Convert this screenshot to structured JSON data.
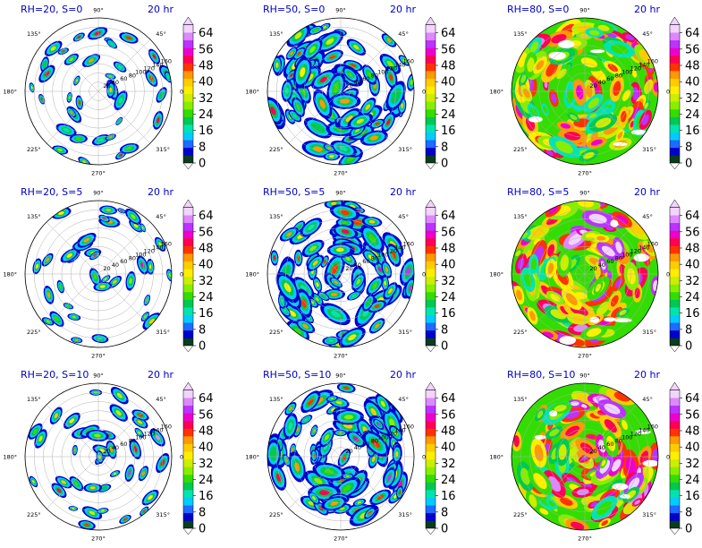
{
  "chart_data": {
    "type": "polar-field-grid",
    "time_label": "20 hr",
    "angle_tick_labels": [
      "0°",
      "45°",
      "90°",
      "135°",
      "180°",
      "225°",
      "270°",
      "315°"
    ],
    "radial_tick_labels": [
      "20",
      "40",
      "60",
      "80",
      "100",
      "120",
      "140",
      "160"
    ],
    "colorbar": {
      "ticks": [
        0,
        8,
        16,
        24,
        32,
        40,
        48,
        56,
        64
      ],
      "levels": [
        0,
        4,
        8,
        12,
        16,
        20,
        24,
        28,
        32,
        36,
        40,
        44,
        48,
        52,
        56,
        60,
        64,
        68
      ],
      "colors": [
        "#0a3d1f",
        "#0000cc",
        "#1e6bff",
        "#00ccff",
        "#00e5b0",
        "#00c853",
        "#33dd00",
        "#88ee00",
        "#ccee00",
        "#ffee00",
        "#ffcc00",
        "#ff9900",
        "#ff3300",
        "#ff0055",
        "#ee00cc",
        "#bb33ff",
        "#dd88ff",
        "#f2d4ff"
      ]
    },
    "panels": [
      {
        "title": "RH=20, S=0",
        "rh": 20,
        "s": 0
      },
      {
        "title": "RH=50, S=0",
        "rh": 50,
        "s": 0
      },
      {
        "title": "RH=80, S=0",
        "rh": 80,
        "s": 0
      },
      {
        "title": "RH=20, S=5",
        "rh": 20,
        "s": 5
      },
      {
        "title": "RH=50, S=5",
        "rh": 50,
        "s": 5
      },
      {
        "title": "RH=80, S=5",
        "rh": 80,
        "s": 5
      },
      {
        "title": "RH=20, S=10",
        "rh": 20,
        "s": 10
      },
      {
        "title": "RH=50, S=10",
        "rh": 50,
        "s": 10
      },
      {
        "title": "RH=80, S=10",
        "rh": 80,
        "s": 10
      }
    ]
  }
}
